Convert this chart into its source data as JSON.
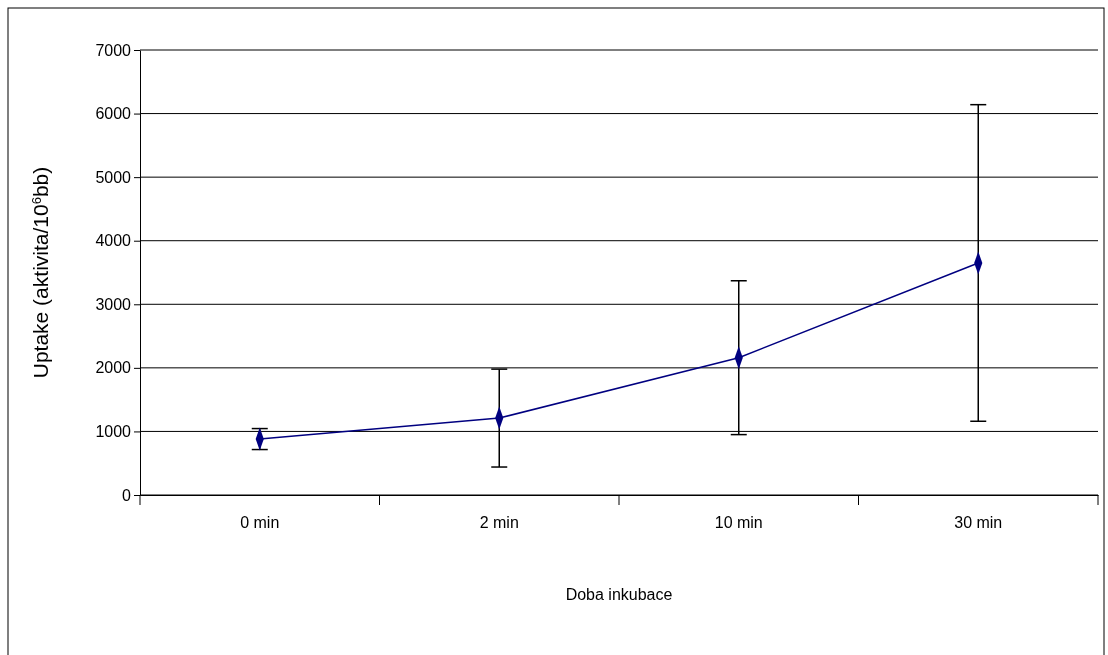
{
  "chart_data": {
    "type": "line",
    "xlabel": "Doba inkubace",
    "ylabel": "Uptake (aktivita/10$^{6}$bb)",
    "categories": [
      "0 min",
      "2 min",
      "10 min",
      "30 min"
    ],
    "series": [
      {
        "color": "#000080",
        "values": [
          880,
          1210,
          2160,
          3650
        ],
        "errors": [
          165,
          770,
          1210,
          2490
        ]
      }
    ],
    "ylim": [
      0,
      7000
    ],
    "yticks": [
      0,
      1000,
      2000,
      3000,
      4000,
      5000,
      6000,
      7000
    ],
    "grid": "y",
    "marker": "diamond",
    "line_style": "solid",
    "legend": false
  }
}
